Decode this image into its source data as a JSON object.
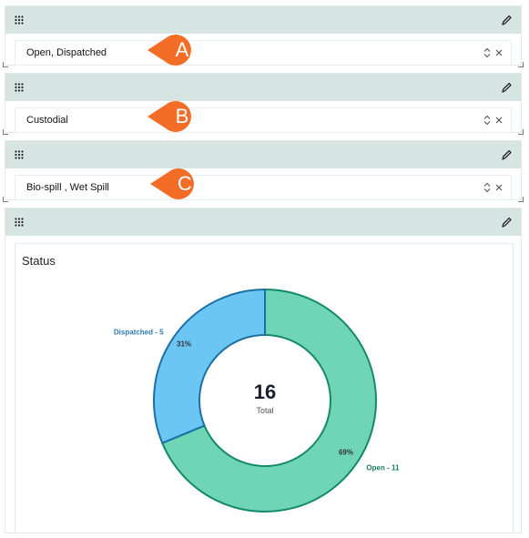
{
  "panels": [
    {
      "filter_value": "Open, Dispatched",
      "callout": "A"
    },
    {
      "filter_value": "Custodial",
      "callout": "B"
    },
    {
      "filter_value": "Bio-spill , Wet Spill",
      "callout": "C"
    }
  ],
  "chart_panel": {
    "card_title": "Status",
    "center_value": "16",
    "center_label": "Total"
  },
  "chart_data": {
    "type": "pie",
    "title": "Status",
    "categories": [
      "Open",
      "Dispatched"
    ],
    "values": [
      11,
      5
    ],
    "percent_labels": [
      "69%",
      "31%"
    ],
    "slice_labels": [
      "Open - 11",
      "Dispatched - 5"
    ],
    "colors": [
      "#6fd5b4",
      "#6cc6f3"
    ],
    "stroke_colors": [
      "#138a6a",
      "#1b6fa5"
    ],
    "label_colors": [
      "#1b7a5c",
      "#2b7bb3"
    ]
  },
  "colors": {
    "panel_header": "#d7e5e2",
    "callout": "#f36d27"
  },
  "icons": {
    "drag": "drag-grid-icon",
    "edit": "pencil-icon",
    "sort": "sort-arrows-icon",
    "clear": "close-icon"
  }
}
